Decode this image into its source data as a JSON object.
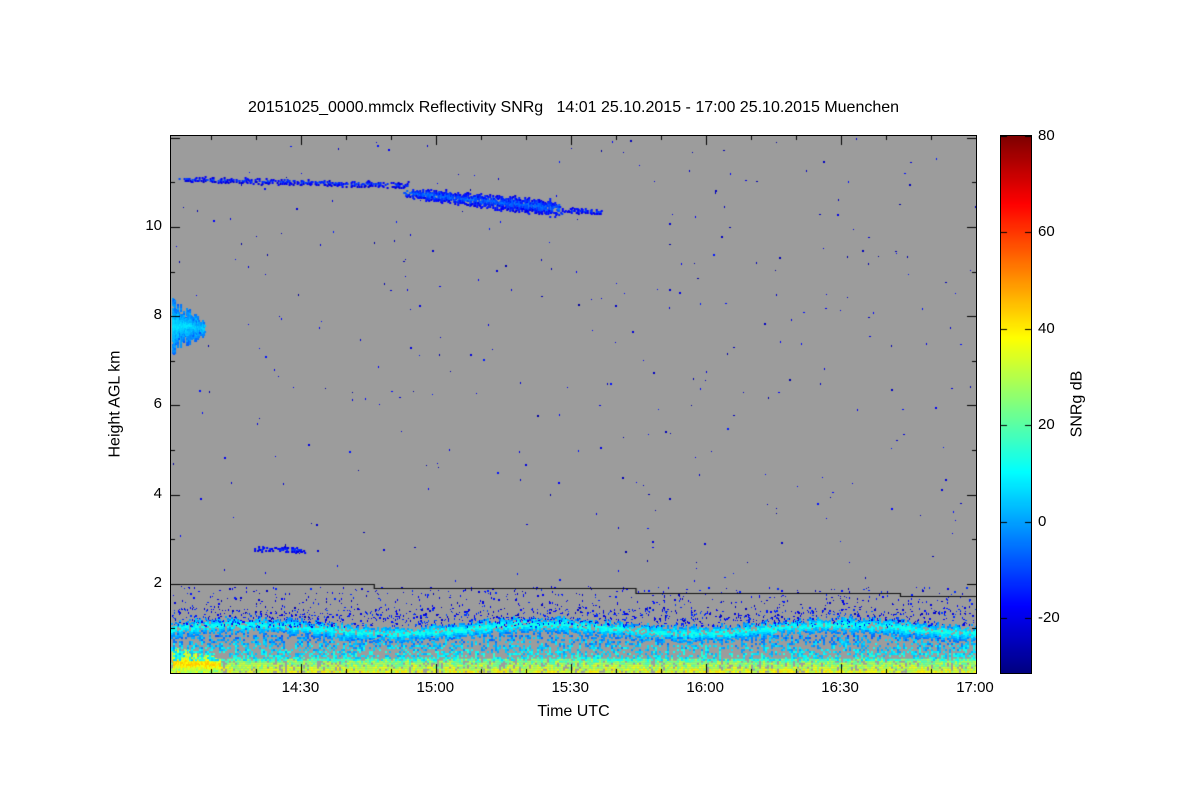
{
  "chart_data": {
    "type": "heatmap",
    "title": "20151025_0000.mmclx Reflectivity SNRg   14:01 25.10.2015 - 17:00 25.10.2015 Muenchen",
    "xlabel": "Time UTC",
    "ylabel": "Height AGL km",
    "x_ticks": [
      "14:30",
      "15:00",
      "15:30",
      "16:00",
      "16:30",
      "17:00"
    ],
    "x_range_hours": [
      14.0167,
      17.0
    ],
    "y_ticks": [
      2,
      4,
      6,
      8,
      10
    ],
    "y_range_km": [
      0,
      12.04
    ],
    "grid": false,
    "background_color": "#9c9c9c",
    "colorbar": {
      "label": "SNRg dB",
      "ticks": [
        80,
        60,
        40,
        20,
        0,
        -20
      ],
      "range": [
        -31.3,
        80
      ],
      "colormap": "jet"
    },
    "features": [
      {
        "type": "fill_noise",
        "name": "boundary-layer-surface",
        "t": [
          14.0167,
          17.0
        ],
        "h": [
          0.0,
          0.32
        ],
        "density": 0.85,
        "val": [
          12,
          42
        ]
      },
      {
        "type": "blob",
        "name": "boundary-layer-left-bright-patch",
        "t": [
          14.0167,
          14.2
        ],
        "hc": [
          0.25,
          0.2
        ],
        "th": [
          0.55,
          0.3
        ],
        "density": 0.95,
        "val": [
          22,
          44
        ],
        "taper": 0.03
      },
      {
        "type": "fill_noise",
        "name": "boundary-layer-mid",
        "t": [
          14.0167,
          17.0
        ],
        "h": [
          0.3,
          0.85
        ],
        "density": 0.42,
        "val": [
          -10,
          16
        ]
      },
      {
        "type": "wave_band",
        "name": "boundary-layer-top-band",
        "t": [
          14.0167,
          17.0
        ],
        "base": 1.0,
        "amp": 0.1,
        "period": 1.1,
        "half": 0.1,
        "jitter": 0.1,
        "density": 0.8,
        "val": [
          -6,
          14
        ]
      },
      {
        "type": "speckles",
        "name": "boundary-layer-fringe-speckles",
        "t": [
          14.0167,
          17.0
        ],
        "h": [
          1.05,
          1.45
        ],
        "count": 900,
        "val": [
          -24,
          -8
        ]
      },
      {
        "type": "speckles",
        "name": "below-line-speckles",
        "t": [
          14.02,
          17.0
        ],
        "h": [
          1.15,
          1.95
        ],
        "count": 700,
        "val": [
          -26,
          -12
        ]
      },
      {
        "type": "speckles",
        "name": "free-troposphere-noise-speckles",
        "t": [
          14.02,
          17.0
        ],
        "h": [
          2.0,
          12.0
        ],
        "count": 320,
        "val": [
          -28,
          -14
        ]
      },
      {
        "type": "blob",
        "name": "cirrus-thin-line-left",
        "t": [
          14.03,
          14.9
        ],
        "hc": [
          11.1,
          10.95
        ],
        "th": [
          0.07,
          0.1
        ],
        "density": 0.5,
        "val": [
          -24,
          -10
        ],
        "taper": 0.05
      },
      {
        "type": "blob",
        "name": "cirrus-main-layer",
        "t": [
          14.87,
          15.47
        ],
        "hc": [
          10.8,
          10.42
        ],
        "th": [
          0.15,
          0.3
        ],
        "density": 0.8,
        "val": [
          -22,
          -5
        ],
        "taper": 0.07
      },
      {
        "type": "blob",
        "name": "cirrus-trailing-edge",
        "t": [
          15.45,
          15.62
        ],
        "hc": [
          10.42,
          10.35
        ],
        "th": [
          0.08,
          0.08
        ],
        "density": 0.5,
        "val": [
          -22,
          -10
        ],
        "taper": 0.15
      },
      {
        "type": "blob",
        "name": "midlevel-patch-8km",
        "t": [
          14.017,
          14.14
        ],
        "hc": [
          7.8,
          7.75
        ],
        "th": [
          0.9,
          0.3
        ],
        "density": 0.95,
        "val": [
          -8,
          6
        ],
        "taper": 0.03
      },
      {
        "type": "blob",
        "name": "midlevel-patch-8km-core",
        "t": [
          14.017,
          14.09
        ],
        "hc": [
          7.8,
          7.8
        ],
        "th": [
          0.45,
          0.2
        ],
        "density": 0.95,
        "val": [
          0,
          8
        ],
        "taper": 0.03
      },
      {
        "type": "blob",
        "name": "streak-2p8km",
        "t": [
          14.31,
          14.52
        ],
        "hc": [
          2.8,
          2.78
        ],
        "th": [
          0.08,
          0.08
        ],
        "density": 0.45,
        "val": [
          -22,
          -12
        ],
        "taper": 0.08
      },
      {
        "type": "steps",
        "name": "sensitivity-limit-line",
        "color": "#111111",
        "width": 1.2,
        "points": [
          [
            14.0167,
            2.0
          ],
          [
            14.77,
            2.0
          ],
          [
            14.77,
            1.91
          ],
          [
            15.74,
            1.91
          ],
          [
            15.74,
            1.8
          ],
          [
            16.72,
            1.8
          ],
          [
            16.72,
            1.73
          ],
          [
            17.0,
            1.73
          ]
        ]
      }
    ]
  }
}
